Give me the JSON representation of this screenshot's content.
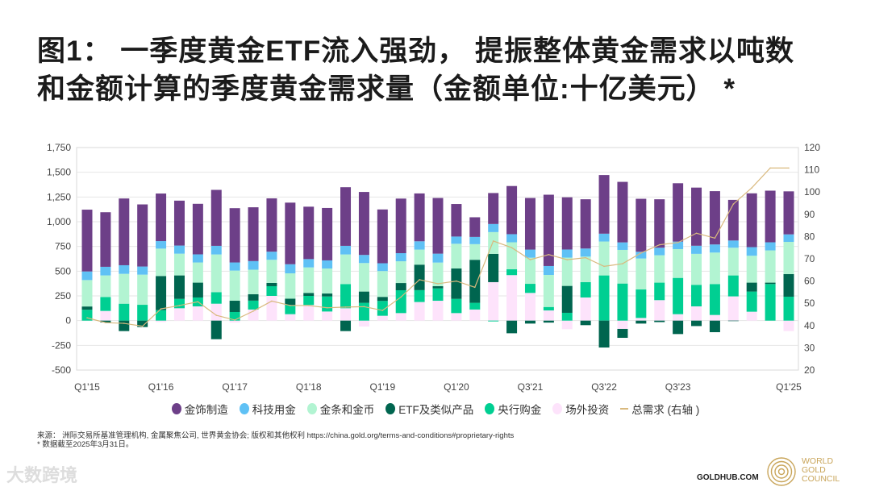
{
  "title": {
    "line1": "图1： 一季度黄金ETF流入强劲， 提振整体黄金需求以吨数",
    "line2": "和金额计算的季度黄金需求量（金额单位:十亿美元） *"
  },
  "colors": {
    "jewellery": "#6d3f88",
    "technology": "#5fc1f5",
    "bars_coins": "#b2f4d2",
    "etf": "#00654f",
    "central_banks": "#00cf92",
    "otc": "#fde3fb",
    "total": "#d9b97e"
  },
  "chart_data": {
    "type": "bar",
    "stacked": true,
    "categories": [
      "Q1'15",
      "",
      "",
      "",
      "Q1'16",
      "",
      "",
      "",
      "Q1'17",
      "",
      "",
      "",
      "Q1'18",
      "",
      "",
      "",
      "Q1'19",
      "",
      "",
      "",
      "Q1'20",
      "",
      "",
      "",
      "Q3'21",
      "",
      "",
      "",
      "Q3'22",
      "",
      "",
      "",
      "Q3'23",
      "",
      "",
      "",
      "",
      "",
      "Q1'25"
    ],
    "ylim_left": [
      -500,
      1750
    ],
    "ylim_right": [
      20,
      120
    ],
    "yticks_left": [
      "1,750",
      "1,500",
      "1,250",
      "1,000",
      "750",
      "500",
      "250",
      "0",
      "-250",
      "-500"
    ],
    "yticks_right": [
      "120",
      "110",
      "100",
      "90",
      "80",
      "70",
      "60",
      "50",
      "40",
      "30",
      "20"
    ],
    "grid": true,
    "legend_position": "bottom",
    "series": [
      {
        "key": "otc",
        "name": "场外投资",
        "axis": "left",
        "values": [
          0,
          98,
          0,
          0,
          -15,
          125,
          144,
          171,
          -20,
          112,
          250,
          65,
          158,
          92,
          125,
          -60,
          49,
          76,
          188,
          201,
          76,
          112,
          389,
          460,
          280,
          103,
          -87,
          234,
          0,
          -84,
          27,
          207,
          65,
          144,
          57,
          245,
          90,
          0,
          -106
        ]
      },
      {
        "key": "central_banks",
        "name": "央行购金",
        "axis": "left",
        "values": [
          110,
          141,
          171,
          160,
          106,
          95,
          90,
          117,
          87,
          90,
          98,
          92,
          92,
          152,
          245,
          180,
          150,
          231,
          120,
          125,
          144,
          68,
          -8,
          60,
          92,
          35,
          79,
          155,
          457,
          375,
          288,
          177,
          367,
          218,
          313,
          212,
          204,
          370,
          242
        ]
      },
      {
        "key": "etf",
        "name": "ETF及类似产品",
        "axis": "left",
        "values": [
          33,
          -19,
          -106,
          -65,
          345,
          237,
          150,
          -188,
          114,
          65,
          33,
          65,
          30,
          30,
          -106,
          114,
          41,
          73,
          258,
          22,
          307,
          435,
          286,
          -128,
          -30,
          -20,
          272,
          -46,
          -272,
          -90,
          -30,
          -15,
          -136,
          -55,
          -117,
          -5,
          90,
          14,
          228
        ]
      },
      {
        "key": "bars_coins",
        "name": "金条和金币",
        "axis": "left",
        "values": [
          267,
          218,
          302,
          305,
          277,
          220,
          204,
          381,
          305,
          248,
          234,
          256,
          258,
          253,
          299,
          288,
          261,
          220,
          152,
          239,
          250,
          158,
          220,
          272,
          264,
          324,
          286,
          258,
          343,
          340,
          313,
          277,
          291,
          313,
          318,
          280,
          272,
          326,
          326
        ]
      },
      {
        "key": "technology",
        "name": "科技用金",
        "axis": "left",
        "values": [
          87,
          87,
          87,
          82,
          76,
          82,
          82,
          87,
          82,
          87,
          82,
          92,
          84,
          82,
          87,
          82,
          79,
          82,
          84,
          90,
          73,
          73,
          82,
          82,
          82,
          90,
          82,
          82,
          79,
          76,
          68,
          76,
          76,
          82,
          82,
          73,
          87,
          82,
          76
        ]
      },
      {
        "key": "jewellery",
        "name": "金饰制造",
        "axis": "left",
        "values": [
          625,
          552,
          675,
          628,
          481,
          454,
          511,
          566,
          549,
          544,
          539,
          623,
          530,
          530,
          593,
          637,
          544,
          552,
          484,
          563,
          329,
          199,
          313,
          487,
          522,
          721,
          528,
          498,
          593,
          612,
          536,
          490,
          590,
          588,
          539,
          411,
          544,
          522,
          435
        ]
      }
    ],
    "line": {
      "key": "total",
      "name": "总需求 (右轴 )",
      "axis": "right",
      "values": [
        43.5,
        41.3,
        41,
        39.7,
        47.5,
        49,
        50.7,
        44.6,
        42.5,
        46.5,
        51,
        49,
        49,
        48,
        48.3,
        48.5,
        46.8,
        52.8,
        60.6,
        58.8,
        60,
        57.2,
        78,
        75,
        69.6,
        71.9,
        69.6,
        70.5,
        66.6,
        67.8,
        72.6,
        76.3,
        77.3,
        81.5,
        79.3,
        94.6,
        101.9,
        110.8,
        110.8
      ]
    }
  },
  "legend": [
    "金饰制造",
    "科技用金",
    "金条和金币",
    "ETF及类似产品",
    "央行购金",
    "场外投资",
    "总需求 (右轴 )"
  ],
  "source": {
    "line1": "来源： 洲际交易所基准管理机构, 金属聚焦公司, 世界黄金协会; 版权和其他权利 https://china.gold.org/terms-and-conditions#proprietary-rights",
    "line2": "* 数据截至2025年3月31日。"
  },
  "footer": {
    "watermark": "大数跨境",
    "site": "GOLDHUB.COM",
    "logo_text": [
      "WORLD",
      "GOLD",
      "COUNCIL"
    ]
  }
}
